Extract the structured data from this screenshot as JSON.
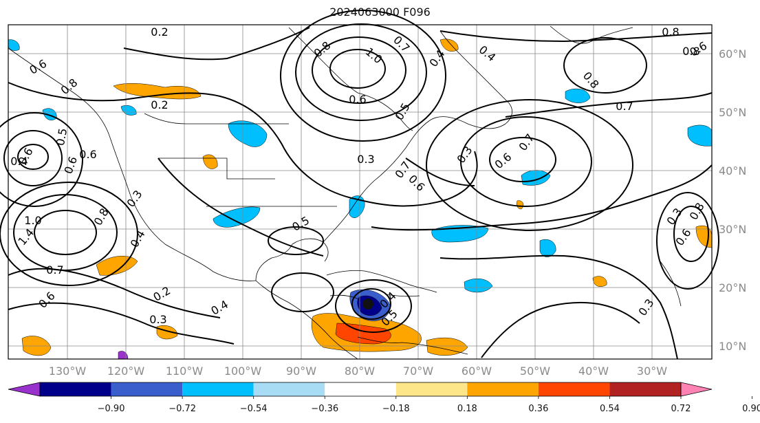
{
  "title": "2024063000 F096",
  "longitude_ticks": [
    "130°W",
    "120°W",
    "110°W",
    "100°W",
    "90°W",
    "80°W",
    "70°W",
    "60°W",
    "50°W",
    "40°W",
    "30°W"
  ],
  "latitude_ticks": [
    "60°N",
    "50°N",
    "40°N",
    "30°N",
    "20°N",
    "10°N"
  ],
  "colorbar": {
    "tick_labels": [
      "−0.90",
      "−0.72",
      "−0.54",
      "−0.36",
      "−0.18",
      "0.18",
      "0.36",
      "0.54",
      "0.72",
      "0.90"
    ],
    "colors": [
      "#9932cc",
      "#00008b",
      "#3a5fcd",
      "#00bfff",
      "#a8dcf5",
      "#ffffff",
      "#fde68a",
      "#ffa500",
      "#ff4500",
      "#b22222",
      "#ff82b4"
    ]
  },
  "contour_labels": [
    "0.2",
    "0.6",
    "0.8",
    "0.6",
    "0.4",
    "1.0",
    "0.7",
    "0.8",
    "0.4",
    "0.6",
    "0.5",
    "0.2",
    "0.6",
    "0.6",
    "0.4",
    "0.5",
    "0.6",
    "0.3",
    "0.6",
    "0.8",
    "0.7",
    "0.7",
    "0.8",
    "0.6",
    "0.3",
    "1.0",
    "1.4",
    "0.8",
    "0.4",
    "0.3",
    "0.7",
    "0.6",
    "0.2",
    "0.4",
    "0.3",
    "0.4",
    "0.5",
    "0.3",
    "0.3",
    "0.6",
    "0.8",
    "0.7",
    "0.5",
    "0.8"
  ]
}
